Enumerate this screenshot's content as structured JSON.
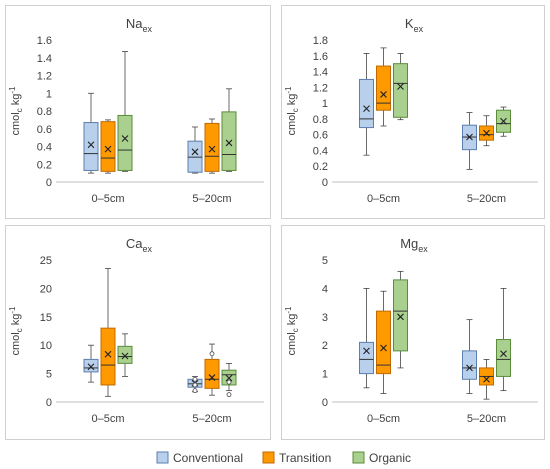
{
  "chart_data": [
    {
      "type": "box",
      "title_main": "Na",
      "title_sub": "ex",
      "ylabel_main": "cmol",
      "ylabel_sub": "c",
      "ylabel_rest": " kg",
      "ylabel_sup": "-1",
      "ylim": [
        0,
        1.6
      ],
      "yticks": [
        "0",
        "0.2",
        "0.4",
        "0.6",
        "0.8",
        "1",
        "1.2",
        "1.4",
        "1.6"
      ],
      "categories": [
        "0–5cm",
        "5–20cm"
      ],
      "series": [
        {
          "name": "Conventional",
          "boxes": [
            {
              "min": 0.1,
              "q1": 0.13,
              "median": 0.32,
              "q3": 0.67,
              "max": 1.0,
              "mean": 0.42,
              "outliers": []
            },
            {
              "min": 0.1,
              "q1": 0.11,
              "median": 0.28,
              "q3": 0.46,
              "max": 0.62,
              "mean": 0.34,
              "outliers": []
            }
          ]
        },
        {
          "name": "Transition",
          "boxes": [
            {
              "min": 0.1,
              "q1": 0.12,
              "median": 0.27,
              "q3": 0.68,
              "max": 0.7,
              "mean": 0.37,
              "outliers": []
            },
            {
              "min": 0.1,
              "q1": 0.12,
              "median": 0.29,
              "q3": 0.66,
              "max": 0.71,
              "mean": 0.37,
              "outliers": []
            }
          ]
        },
        {
          "name": "Organic",
          "boxes": [
            {
              "min": 0.12,
              "q1": 0.13,
              "median": 0.36,
              "q3": 0.75,
              "max": 1.47,
              "mean": 0.49,
              "outliers": []
            },
            {
              "min": 0.12,
              "q1": 0.13,
              "median": 0.31,
              "q3": 0.79,
              "max": 1.05,
              "mean": 0.44,
              "outliers": []
            }
          ]
        }
      ]
    },
    {
      "type": "box",
      "title_main": "K",
      "title_sub": "ex",
      "ylabel_main": "cmol",
      "ylabel_sub": "c",
      "ylabel_rest": " kg",
      "ylabel_sup": "-1",
      "ylim": [
        0,
        1.8
      ],
      "yticks": [
        "0",
        "0.2",
        "0.4",
        "0.6",
        "0.8",
        "1",
        "1.2",
        "1.4",
        "1.6",
        "1.8"
      ],
      "categories": [
        "0–5cm",
        "5–20cm"
      ],
      "series": [
        {
          "name": "Conventional",
          "boxes": [
            {
              "min": 0.34,
              "q1": 0.69,
              "median": 0.8,
              "q3": 1.3,
              "max": 1.63,
              "mean": 0.93,
              "outliers": []
            },
            {
              "min": 0.16,
              "q1": 0.41,
              "median": 0.57,
              "q3": 0.72,
              "max": 0.88,
              "mean": 0.57,
              "outliers": []
            }
          ]
        },
        {
          "name": "Transition",
          "boxes": [
            {
              "min": 0.71,
              "q1": 0.91,
              "median": 1.0,
              "q3": 1.47,
              "max": 1.7,
              "mean": 1.11,
              "outliers": []
            },
            {
              "min": 0.46,
              "q1": 0.53,
              "median": 0.6,
              "q3": 0.71,
              "max": 0.84,
              "mean": 0.62,
              "outliers": []
            }
          ]
        },
        {
          "name": "Organic",
          "boxes": [
            {
              "min": 0.79,
              "q1": 0.82,
              "median": 1.25,
              "q3": 1.5,
              "max": 1.63,
              "mean": 1.21,
              "outliers": []
            },
            {
              "min": 0.58,
              "q1": 0.63,
              "median": 0.74,
              "q3": 0.91,
              "max": 0.95,
              "mean": 0.77,
              "outliers": []
            }
          ]
        }
      ]
    },
    {
      "type": "box",
      "title_main": "Ca",
      "title_sub": "ex",
      "ylabel_main": "cmol",
      "ylabel_sub": "c",
      "ylabel_rest": " kg",
      "ylabel_sup": "-1",
      "ylim": [
        0,
        25
      ],
      "yticks": [
        "0",
        "5",
        "10",
        "15",
        "20",
        "25"
      ],
      "categories": [
        "0–5cm",
        "5–20cm"
      ],
      "series": [
        {
          "name": "Conventional",
          "boxes": [
            {
              "min": 3.5,
              "q1": 5.3,
              "median": 6.0,
              "q3": 7.5,
              "max": 10.0,
              "mean": 6.2,
              "outliers": []
            },
            {
              "min": 1.8,
              "q1": 2.6,
              "median": 3.2,
              "q3": 4.0,
              "max": 4.5,
              "mean": 3.3,
              "outliers": [
                2.0,
                3.0,
                4.0
              ]
            }
          ]
        },
        {
          "name": "Transition",
          "boxes": [
            {
              "min": 1.0,
              "q1": 3.0,
              "median": 6.5,
              "q3": 13.0,
              "max": 23.5,
              "mean": 8.4,
              "outliers": []
            },
            {
              "min": 1.2,
              "q1": 2.4,
              "median": 4.0,
              "q3": 7.5,
              "max": 10.2,
              "mean": 4.3,
              "outliers": [
                8.5
              ]
            }
          ]
        },
        {
          "name": "Organic",
          "boxes": [
            {
              "min": 4.5,
              "q1": 6.8,
              "median": 8.0,
              "q3": 9.8,
              "max": 12.0,
              "mean": 8.1,
              "outliers": []
            },
            {
              "min": 2.0,
              "q1": 3.0,
              "median": 4.8,
              "q3": 5.6,
              "max": 6.8,
              "mean": 4.2,
              "outliers": [
                1.3,
                3.5
              ]
            }
          ]
        }
      ]
    },
    {
      "type": "box",
      "title_main": "Mg",
      "title_sub": "ex",
      "ylabel_main": "cmol",
      "ylabel_sub": "c",
      "ylabel_rest": " kg",
      "ylabel_sup": "-1",
      "ylim": [
        0,
        5
      ],
      "yticks": [
        "0",
        "1",
        "2",
        "3",
        "4",
        "5"
      ],
      "categories": [
        "0–5cm",
        "5–20cm"
      ],
      "series": [
        {
          "name": "Conventional",
          "boxes": [
            {
              "min": 0.5,
              "q1": 1.0,
              "median": 1.5,
              "q3": 2.1,
              "max": 4.0,
              "mean": 1.8,
              "outliers": []
            },
            {
              "min": 0.3,
              "q1": 0.8,
              "median": 1.2,
              "q3": 1.8,
              "max": 2.9,
              "mean": 1.2,
              "outliers": []
            }
          ]
        },
        {
          "name": "Transition",
          "boxes": [
            {
              "min": 0.3,
              "q1": 1.0,
              "median": 1.3,
              "q3": 3.2,
              "max": 3.9,
              "mean": 1.9,
              "outliers": []
            },
            {
              "min": 0.1,
              "q1": 0.6,
              "median": 0.9,
              "q3": 1.2,
              "max": 1.5,
              "mean": 0.8,
              "outliers": []
            }
          ]
        },
        {
          "name": "Organic",
          "boxes": [
            {
              "min": 1.2,
              "q1": 1.8,
              "median": 3.2,
              "q3": 4.3,
              "max": 4.6,
              "mean": 3.0,
              "outliers": []
            },
            {
              "min": 0.4,
              "q1": 0.9,
              "median": 1.5,
              "q3": 2.2,
              "max": 4.0,
              "mean": 1.7,
              "outliers": []
            }
          ]
        }
      ]
    }
  ],
  "legend": {
    "items": [
      {
        "label": "Conventional",
        "color": "#b8d0ec",
        "stroke": "#5b7fae"
      },
      {
        "label": "Transition",
        "color": "#ff9900",
        "stroke": "#c06a00"
      },
      {
        "label": "Organic",
        "color": "#a9d08e",
        "stroke": "#5a8c3a"
      }
    ]
  },
  "colors": {
    "Conventional": {
      "fill": "#b8d0ec",
      "stroke": "#5b7fae"
    },
    "Transition": {
      "fill": "#ff9900",
      "stroke": "#c06a00"
    },
    "Organic": {
      "fill": "#a9d08e",
      "stroke": "#5a8c3a"
    }
  }
}
